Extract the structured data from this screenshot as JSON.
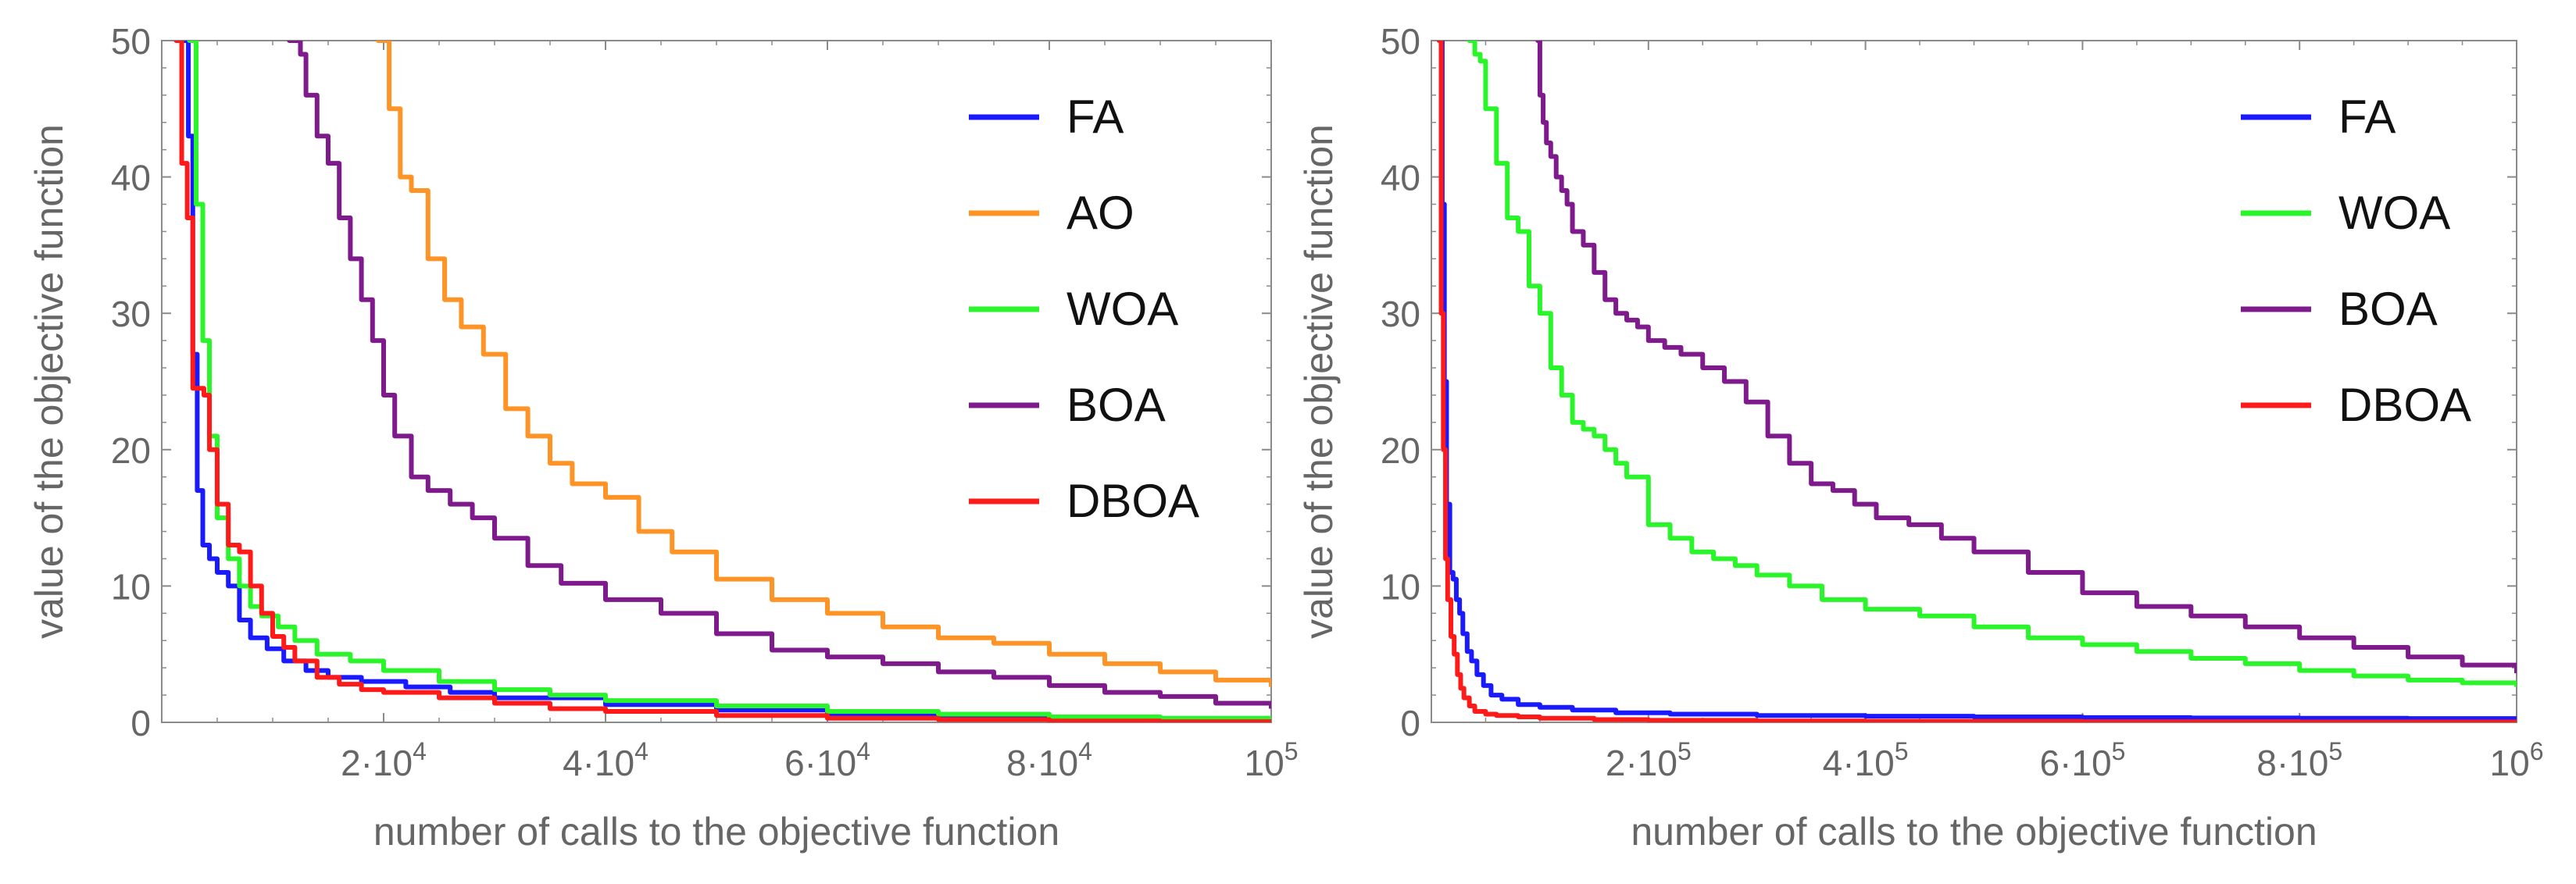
{
  "chart_data": [
    {
      "type": "line",
      "xlabel": "number of calls to the objective function",
      "ylabel": "value of the objective function",
      "xlim": [
        0,
        100000
      ],
      "ylim": [
        0,
        50
      ],
      "x_ticks": [
        {
          "value": 20000,
          "mantissa": "2·10",
          "exp": "4"
        },
        {
          "value": 40000,
          "mantissa": "4·10",
          "exp": "4"
        },
        {
          "value": 60000,
          "mantissa": "6·10",
          "exp": "4"
        },
        {
          "value": 80000,
          "mantissa": "8·10",
          "exp": "4"
        },
        {
          "value": 100000,
          "mantissa": "10",
          "exp": "5"
        }
      ],
      "y_ticks": [
        {
          "value": 0,
          "label": "0"
        },
        {
          "value": 10,
          "label": "10"
        },
        {
          "value": 20,
          "label": "20"
        },
        {
          "value": 30,
          "label": "30"
        },
        {
          "value": 40,
          "label": "40"
        },
        {
          "value": 50,
          "label": "50"
        }
      ],
      "legend_position": "top-right",
      "series": [
        {
          "name": "FA",
          "color": "#1a1aff",
          "x": [
            1800,
            2400,
            2800,
            3200,
            3700,
            4300,
            5000,
            6000,
            7000,
            8000,
            9500,
            11000,
            13000,
            15000,
            18000,
            22000,
            26000,
            30000,
            40000,
            50000,
            60000,
            70000,
            80000,
            90000,
            100000
          ],
          "y": [
            50,
            43,
            27,
            17,
            13,
            12,
            11,
            10,
            7.5,
            6.2,
            5.4,
            4.5,
            3.8,
            3.3,
            3.0,
            2.6,
            2.2,
            1.8,
            1.3,
            0.9,
            0.6,
            0.4,
            0.3,
            0.2,
            0.15
          ]
        },
        {
          "name": "AO",
          "color": "#ff9426",
          "x": [
            19500,
            20500,
            21500,
            22500,
            24000,
            25500,
            27000,
            29000,
            31000,
            33000,
            35000,
            37000,
            40000,
            43000,
            46000,
            50000,
            55000,
            60000,
            65000,
            70000,
            75000,
            80000,
            85000,
            90000,
            95000,
            100000
          ],
          "y": [
            50,
            45,
            40,
            39,
            34,
            31,
            29,
            27,
            23,
            21,
            19,
            17.5,
            16.5,
            14,
            12.5,
            10.5,
            9.0,
            8.0,
            7.0,
            6.2,
            5.8,
            5.0,
            4.3,
            3.7,
            3.1,
            2.6
          ]
        },
        {
          "name": "WOA",
          "color": "#2af52a",
          "x": [
            2500,
            3100,
            3700,
            4300,
            5000,
            6000,
            7000,
            8000,
            9000,
            10500,
            12000,
            14000,
            17000,
            20000,
            25000,
            30000,
            35000,
            40000,
            50000,
            60000,
            70000,
            80000,
            90000,
            100000
          ],
          "y": [
            50,
            38,
            28,
            21,
            15,
            12,
            10,
            8.5,
            7.8,
            7.0,
            6.0,
            5.0,
            4.5,
            3.8,
            3.0,
            2.4,
            2.0,
            1.6,
            1.2,
            0.8,
            0.6,
            0.4,
            0.3,
            0.2
          ]
        },
        {
          "name": "BOA",
          "color": "#7e1a8c",
          "x": [
            11500,
            12500,
            13000,
            14000,
            15000,
            16000,
            17000,
            18000,
            19000,
            20000,
            21000,
            22500,
            24000,
            26000,
            28000,
            30000,
            33000,
            36000,
            40000,
            45000,
            50000,
            55000,
            60000,
            65000,
            70000,
            75000,
            80000,
            85000,
            90000,
            95000,
            100000
          ],
          "y": [
            50,
            49,
            46,
            43,
            41,
            37,
            34,
            31,
            28,
            24,
            21,
            18,
            17,
            16,
            15,
            13.5,
            11.5,
            10.2,
            9.0,
            8.0,
            6.5,
            5.3,
            4.8,
            4.3,
            3.7,
            3.3,
            2.7,
            2.2,
            1.9,
            1.4,
            1.0
          ]
        },
        {
          "name": "DBOA",
          "color": "#ff1a1a",
          "x": [
            1300,
            1800,
            2300,
            2800,
            3300,
            3800,
            4300,
            5000,
            6000,
            7000,
            8000,
            9000,
            10000,
            11000,
            12000,
            14000,
            16000,
            18000,
            20000,
            25000,
            30000,
            35000,
            40000,
            50000,
            60000,
            70000,
            80000,
            90000,
            100000
          ],
          "y": [
            50,
            41,
            37,
            24.5,
            24.5,
            24,
            20,
            16,
            13,
            12.5,
            10,
            8.0,
            6.3,
            5.5,
            4.5,
            3.3,
            2.8,
            2.4,
            2.2,
            1.8,
            1.4,
            1.0,
            0.8,
            0.5,
            0.3,
            0.2,
            0.1,
            0.05,
            0.02
          ]
        }
      ]
    },
    {
      "type": "line",
      "xlabel": "number of calls to the objective function",
      "ylabel": "value of the objective function",
      "xlim": [
        0,
        1000000
      ],
      "ylim": [
        0,
        50
      ],
      "x_ticks": [
        {
          "value": 200000,
          "mantissa": "2·10",
          "exp": "5"
        },
        {
          "value": 400000,
          "mantissa": "4·10",
          "exp": "5"
        },
        {
          "value": 600000,
          "mantissa": "6·10",
          "exp": "5"
        },
        {
          "value": 800000,
          "mantissa": "8·10",
          "exp": "5"
        },
        {
          "value": 1000000,
          "mantissa": "10",
          "exp": "6"
        }
      ],
      "y_ticks": [
        {
          "value": 0,
          "label": "0"
        },
        {
          "value": 10,
          "label": "10"
        },
        {
          "value": 20,
          "label": "20"
        },
        {
          "value": 30,
          "label": "30"
        },
        {
          "value": 40,
          "label": "40"
        },
        {
          "value": 50,
          "label": "50"
        }
      ],
      "legend_position": "top-right",
      "series": [
        {
          "name": "FA",
          "color": "#1a1aff",
          "x": [
            8000,
            10000,
            12000,
            14000,
            17000,
            20000,
            23000,
            26000,
            29000,
            33000,
            37000,
            42000,
            48000,
            55000,
            65000,
            80000,
            100000,
            130000,
            170000,
            220000,
            300000,
            400000,
            500000,
            600000,
            700000,
            800000,
            900000,
            1000000
          ],
          "y": [
            50,
            38,
            25,
            16,
            11,
            10.5,
            9,
            8,
            6.5,
            5.2,
            4.5,
            3.5,
            2.7,
            2.0,
            1.7,
            1.3,
            1.1,
            0.9,
            0.7,
            0.6,
            0.5,
            0.45,
            0.4,
            0.35,
            0.32,
            0.3,
            0.28,
            0.25
          ]
        },
        {
          "name": "WOA",
          "color": "#2af52a",
          "x": [
            35000,
            40000,
            45000,
            50000,
            60000,
            70000,
            80000,
            90000,
            100000,
            110000,
            120000,
            130000,
            140000,
            150000,
            160000,
            170000,
            180000,
            200000,
            220000,
            240000,
            260000,
            280000,
            300000,
            330000,
            360000,
            400000,
            450000,
            500000,
            550000,
            600000,
            650000,
            700000,
            750000,
            800000,
            850000,
            900000,
            950000,
            1000000
          ],
          "y": [
            50,
            49,
            48.5,
            45,
            41,
            37,
            36,
            32,
            30,
            26,
            24,
            22,
            21.5,
            21,
            20,
            19,
            18,
            14.5,
            13.5,
            12.5,
            12,
            11.5,
            10.8,
            10,
            9,
            8.3,
            7.8,
            7.0,
            6.2,
            5.7,
            5.2,
            4.7,
            4.3,
            3.8,
            3.4,
            3.1,
            2.9,
            2.6
          ]
        },
        {
          "name": "BOA",
          "color": "#7e1a8c",
          "x": [
            98000,
            100000,
            103000,
            106000,
            110000,
            115000,
            120000,
            125000,
            130000,
            140000,
            150000,
            160000,
            170000,
            180000,
            190000,
            200000,
            215000,
            230000,
            250000,
            270000,
            290000,
            310000,
            330000,
            350000,
            370000,
            390000,
            410000,
            440000,
            470000,
            500000,
            550000,
            600000,
            650000,
            700000,
            750000,
            800000,
            850000,
            900000,
            950000,
            1000000
          ],
          "y": [
            50,
            46,
            44,
            42.5,
            41.5,
            40,
            39,
            38,
            36,
            35,
            33,
            31,
            30,
            29.5,
            29,
            28,
            27.5,
            27,
            26,
            25,
            23.5,
            21,
            19,
            17.5,
            17,
            16,
            15,
            14.5,
            13.5,
            12.5,
            11,
            9.5,
            8.5,
            7.8,
            7.0,
            6.2,
            5.5,
            4.8,
            4.2,
            3.6
          ]
        },
        {
          "name": "DBOA",
          "color": "#ff1a1a",
          "x": [
            7000,
            9000,
            11000,
            13000,
            15000,
            18000,
            21000,
            24000,
            27000,
            30000,
            35000,
            40000,
            50000,
            60000,
            80000,
            100000,
            150000,
            200000,
            300000,
            400000,
            600000,
            800000,
            1000000
          ],
          "y": [
            50,
            30,
            20,
            12,
            9,
            6.3,
            5.0,
            3.5,
            2.5,
            1.8,
            1.2,
            0.8,
            0.6,
            0.5,
            0.4,
            0.3,
            0.2,
            0.15,
            0.1,
            0.08,
            0.05,
            0.03,
            0.02
          ]
        }
      ]
    }
  ]
}
